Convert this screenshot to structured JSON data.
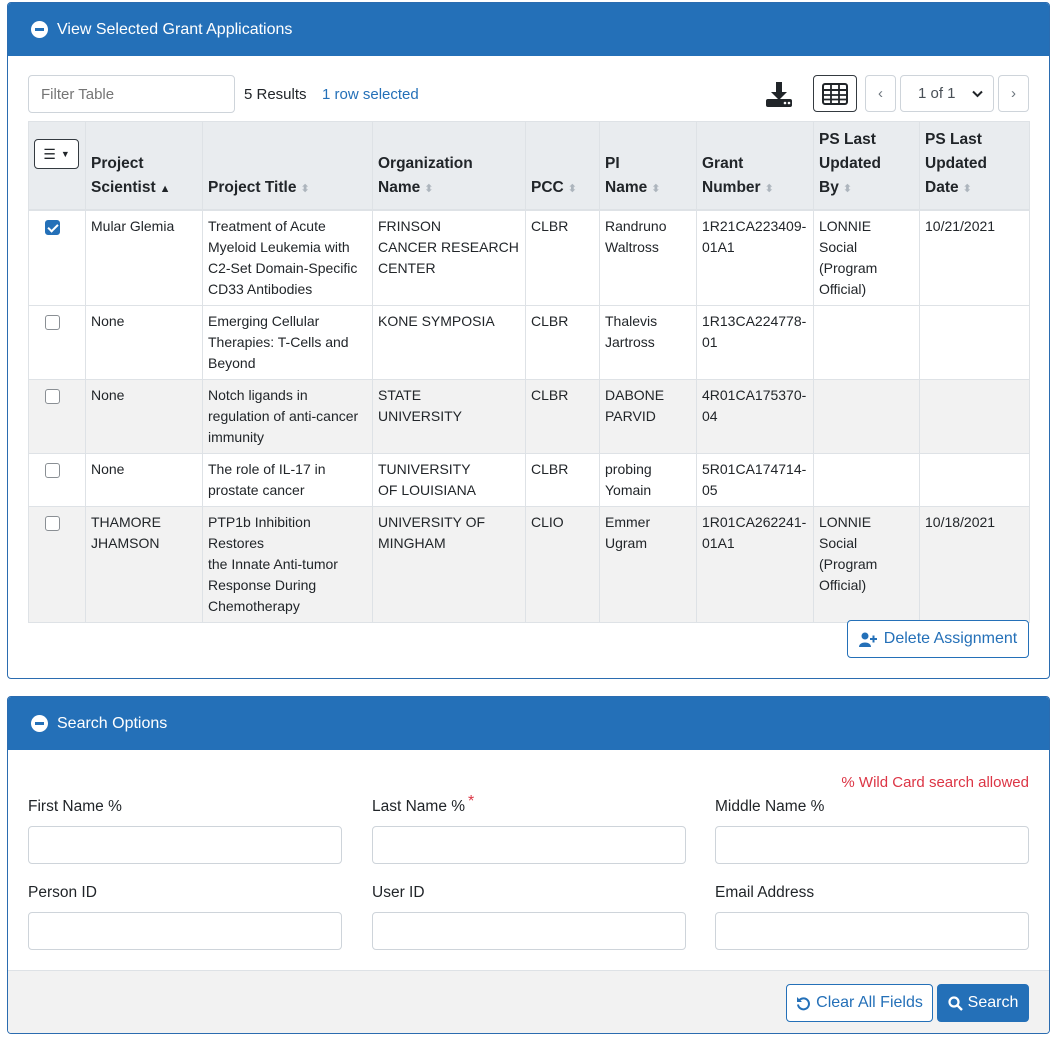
{
  "grant_panel": {
    "title": "View Selected Grant Applications",
    "filter_placeholder": "Filter Table",
    "results_text": "5 Results",
    "selection_text": "1 row selected",
    "pagination": {
      "current": "1 of 1"
    },
    "columns": [
      {
        "line1": "Project",
        "line2": "Scientist",
        "line3": ""
      },
      {
        "line1": "",
        "line2": "Project Title",
        "line3": ""
      },
      {
        "line1": "Organization",
        "line2": "Name",
        "line3": ""
      },
      {
        "line1": "",
        "line2": "PCC",
        "line3": ""
      },
      {
        "line1": "PI",
        "line2": "Name",
        "line3": ""
      },
      {
        "line1": "Grant",
        "line2": "Number",
        "line3": ""
      },
      {
        "line1": "PS Last",
        "line2": "Updated",
        "line3": "By"
      },
      {
        "line1": "PS Last",
        "line2": "Updated",
        "line3": "Date"
      }
    ],
    "rows": [
      {
        "checked": true,
        "scientist": [
          "Mular     Glemia"
        ],
        "title": [
          "Treatment of Acute",
          "Myeloid Leukemia with",
          "C2-Set Domain-Specific",
          "CD33 Antibodies"
        ],
        "org": [
          "FRINSON",
          "CANCER RESEARCH",
          "CENTER"
        ],
        "pcc": "CLBR",
        "pi": [
          "Randruno",
          "Waltross"
        ],
        "grant": [
          "1R21CA223409-",
          "01A1"
        ],
        "ps_by": [
          "LONNIE",
          "Social",
          "(Program",
          "Official)"
        ],
        "ps_date": "10/21/2021"
      },
      {
        "checked": false,
        "scientist": [
          "None"
        ],
        "title": [
          "Emerging Cellular",
          "Therapies: T-Cells and",
          "Beyond"
        ],
        "org": [
          "KONE SYMPOSIA"
        ],
        "pcc": "CLBR",
        "pi": [
          "Thalevis",
          "Jartross"
        ],
        "grant": [
          "1R13CA224778-",
          "01"
        ],
        "ps_by": [],
        "ps_date": ""
      },
      {
        "checked": false,
        "scientist": [
          "None"
        ],
        "title": [
          "Notch ligands in",
          "regulation of anti-cancer",
          "immunity"
        ],
        "org": [
          "STATE",
          "UNIVERSITY"
        ],
        "pcc": "CLBR",
        "pi": [
          "DABONE",
          "PARVID"
        ],
        "grant": [
          "4R01CA175370-",
          "04"
        ],
        "ps_by": [],
        "ps_date": ""
      },
      {
        "checked": false,
        "scientist": [
          "None"
        ],
        "title": [
          "The role of IL-17 in",
          "prostate cancer"
        ],
        "org": [
          "TUNIVERSITY",
          "OF LOUISIANA"
        ],
        "pcc": "CLBR",
        "pi": [
          "probing",
          "Yomain"
        ],
        "grant": [
          "5R01CA174714-",
          "05"
        ],
        "ps_by": [],
        "ps_date": ""
      },
      {
        "checked": false,
        "scientist": [
          "THAMORE",
          "JHAMSON"
        ],
        "title": [
          "PTP1b Inhibition Restores",
          "the Innate Anti-tumor",
          "Response During",
          "Chemotherapy"
        ],
        "org": [
          "UNIVERSITY OF",
          "MINGHAM"
        ],
        "pcc": "CLIO",
        "pi": [
          "Emmer",
          "Ugram"
        ],
        "grant": [
          "1R01CA262241-",
          "01A1"
        ],
        "ps_by": [
          "LONNIE",
          "Social",
          "(Program",
          "Official)"
        ],
        "ps_date": "10/18/2021"
      }
    ],
    "delete_label": "Delete Assignment"
  },
  "search_panel": {
    "title": "Search Options",
    "wildcard_note": "% Wild Card search allowed",
    "fields": {
      "first_name": "First Name %",
      "last_name": "Last Name %",
      "last_name_required": "*",
      "middle_name": "Middle Name %",
      "person_id": "Person ID",
      "user_id": "User ID",
      "email": "Email Address"
    },
    "clear_label": "Clear All Fields",
    "search_label": "Search"
  },
  "colors": {
    "primary": "#2470b8",
    "danger": "#dc3545",
    "header_bg": "#e9ecef",
    "alt_row": "#f2f2f2"
  }
}
